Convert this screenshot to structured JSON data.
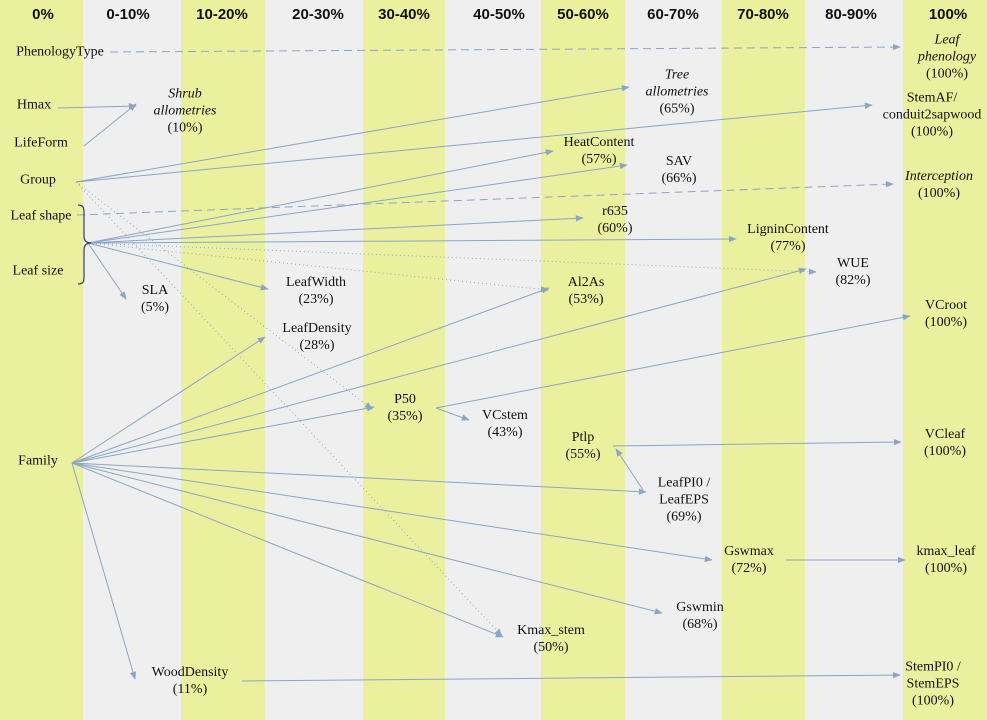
{
  "columns": [
    "0%",
    "0-10%",
    "10-20%",
    "20-30%",
    "30-40%",
    "40-50%",
    "50-60%",
    "60-70%",
    "70-80%",
    "80-90%",
    "100%"
  ],
  "colors": {
    "band_green": "#ebf09f",
    "band_grey": "#efefef",
    "arrow": "#8aa6c6"
  },
  "nodes": {
    "phenologytype": {
      "name": "PhenologyType",
      "pct": ""
    },
    "hmax": {
      "name": "Hmax",
      "pct": ""
    },
    "lifeform": {
      "name": "LifeForm",
      "pct": ""
    },
    "group": {
      "name": "Group",
      "pct": ""
    },
    "leafshape": {
      "name": "Leaf shape",
      "pct": ""
    },
    "leafsize": {
      "name": "Leaf size",
      "pct": ""
    },
    "family": {
      "name": "Family",
      "pct": ""
    },
    "shrub": {
      "name": "Shrub\nallometries",
      "pct": "(10%)"
    },
    "sla": {
      "name": "SLA",
      "pct": "(5%)"
    },
    "wooddensity": {
      "name": "WoodDensity",
      "pct": "(11%)"
    },
    "leafwidth": {
      "name": "LeafWidth",
      "pct": "(23%)"
    },
    "leafdensity": {
      "name": "LeafDensity",
      "pct": "(28%)"
    },
    "p50": {
      "name": "P50",
      "pct": "(35%)"
    },
    "vcstem": {
      "name": "VCstem",
      "pct": "(43%)"
    },
    "kmaxstem": {
      "name": "Kmax_stem",
      "pct": "(50%)"
    },
    "heatcontent": {
      "name": "HeatContent",
      "pct": "(57%)"
    },
    "r635": {
      "name": "r635",
      "pct": "(60%)"
    },
    "al2as": {
      "name": "Al2As",
      "pct": "(53%)"
    },
    "ptlp": {
      "name": "Ptlp",
      "pct": "(55%)"
    },
    "tree": {
      "name": "Tree\nallometries",
      "pct": "(65%)"
    },
    "sav": {
      "name": "SAV",
      "pct": "(66%)"
    },
    "leafpi0": {
      "name": "LeafPI0 /\nLeafEPS",
      "pct": "(69%)"
    },
    "gswmin": {
      "name": "Gswmin",
      "pct": "(68%)"
    },
    "lignin": {
      "name": "LigninContent",
      "pct": "(77%)"
    },
    "gswmax": {
      "name": "Gswmax",
      "pct": "(72%)"
    },
    "wue": {
      "name": "WUE",
      "pct": "(82%)"
    },
    "leafphen": {
      "name": "Leaf\nphenology",
      "pct": "(100%)"
    },
    "stemaf": {
      "name": "StemAF/\nconduit2sapwood",
      "pct": "(100%)"
    },
    "interception": {
      "name": "Interception",
      "pct": "(100%)"
    },
    "vcroot": {
      "name": "VCroot",
      "pct": "(100%)"
    },
    "vcleaf": {
      "name": "VCleaf",
      "pct": "(100%)"
    },
    "kmaxleaf": {
      "name": "kmax_leaf",
      "pct": "(100%)"
    },
    "stempi0": {
      "name": "StemPI0 /\nStemEPS",
      "pct": "(100%)"
    }
  }
}
